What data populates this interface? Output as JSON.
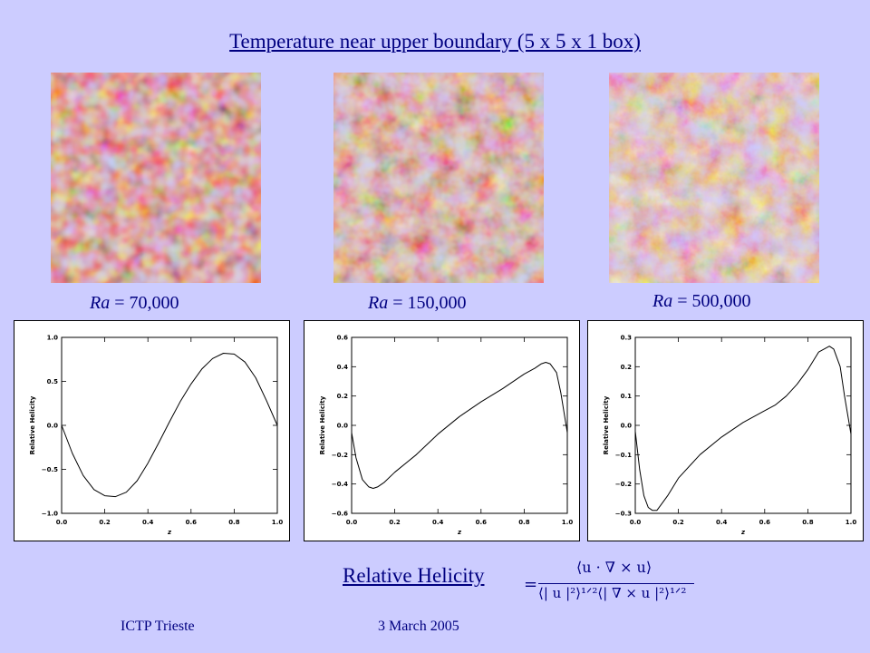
{
  "title": "Temperature near upper boundary (5 x 5 x 1 box)",
  "panels": [
    {
      "ra_symbol": "Ra",
      "ra_value": " = 70,000"
    },
    {
      "ra_symbol": "Ra",
      "ra_value": " = 150,000"
    },
    {
      "ra_symbol": "Ra",
      "ra_value": " = 500,000"
    }
  ],
  "chart_data": [
    {
      "type": "line",
      "xlabel": "z",
      "ylabel": "Relative Helicity",
      "xlim": [
        0.0,
        1.0
      ],
      "ylim": [
        -1.0,
        1.0
      ],
      "xticks": [
        "0.0",
        "0.2",
        "0.4",
        "0.6",
        "0.8",
        "1.0"
      ],
      "yticks": [
        -1.0,
        -0.5,
        0.0,
        0.5,
        1.0
      ],
      "ytick_labels": [
        "−1.0",
        "−0.5",
        "0.0",
        "0.5",
        "1.0"
      ],
      "series": [
        {
          "x": [
            0.0,
            0.05,
            0.1,
            0.15,
            0.2,
            0.25,
            0.3,
            0.35,
            0.4,
            0.45,
            0.5,
            0.55,
            0.6,
            0.65,
            0.7,
            0.75,
            0.8,
            0.85,
            0.9,
            0.95,
            1.0
          ],
          "values": [
            0.0,
            -0.32,
            -0.57,
            -0.73,
            -0.8,
            -0.81,
            -0.76,
            -0.63,
            -0.43,
            -0.2,
            0.04,
            0.27,
            0.47,
            0.64,
            0.76,
            0.82,
            0.81,
            0.72,
            0.54,
            0.28,
            0.0
          ]
        }
      ]
    },
    {
      "type": "line",
      "xlabel": "z",
      "ylabel": "Relative Helicity",
      "xlim": [
        0.0,
        1.0
      ],
      "ylim": [
        -0.6,
        0.6
      ],
      "xticks": [
        "0.0",
        "0.2",
        "0.4",
        "0.6",
        "0.8",
        "1.0"
      ],
      "yticks": [
        -0.6,
        -0.4,
        -0.2,
        0.0,
        0.2,
        0.4,
        0.6
      ],
      "ytick_labels": [
        "−0.6",
        "−0.4",
        "−0.2",
        "0.0",
        "0.2",
        "0.4",
        "0.6"
      ],
      "series": [
        {
          "x": [
            0.0,
            0.02,
            0.05,
            0.08,
            0.1,
            0.12,
            0.15,
            0.2,
            0.3,
            0.4,
            0.5,
            0.6,
            0.7,
            0.8,
            0.85,
            0.88,
            0.9,
            0.92,
            0.95,
            0.97,
            1.0
          ],
          "values": [
            -0.05,
            -0.22,
            -0.37,
            -0.42,
            -0.43,
            -0.42,
            -0.39,
            -0.32,
            -0.2,
            -0.06,
            0.06,
            0.16,
            0.25,
            0.35,
            0.39,
            0.42,
            0.43,
            0.42,
            0.36,
            0.22,
            -0.05
          ]
        }
      ]
    },
    {
      "type": "line",
      "xlabel": "z",
      "ylabel": "Relative Helicity",
      "xlim": [
        0.0,
        1.0
      ],
      "ylim": [
        -0.3,
        0.3
      ],
      "xticks": [
        "0.0",
        "0.2",
        "0.4",
        "0.6",
        "0.8",
        "1.0"
      ],
      "yticks": [
        -0.3,
        -0.2,
        -0.1,
        0.0,
        0.1,
        0.2,
        0.3
      ],
      "ytick_labels": [
        "−0.3",
        "−0.2",
        "−0.1",
        "0.0",
        "0.1",
        "0.2",
        "0.3"
      ],
      "series": [
        {
          "x": [
            0.0,
            0.02,
            0.04,
            0.06,
            0.08,
            0.1,
            0.12,
            0.15,
            0.2,
            0.3,
            0.4,
            0.5,
            0.6,
            0.65,
            0.7,
            0.75,
            0.8,
            0.85,
            0.9,
            0.92,
            0.95,
            0.97,
            1.0
          ],
          "values": [
            -0.02,
            -0.15,
            -0.24,
            -0.28,
            -0.29,
            -0.29,
            -0.27,
            -0.24,
            -0.18,
            -0.1,
            -0.04,
            0.01,
            0.05,
            0.07,
            0.1,
            0.14,
            0.19,
            0.25,
            0.27,
            0.26,
            0.2,
            0.1,
            -0.03
          ]
        }
      ]
    }
  ],
  "helicity": {
    "label": "Relative Helicity",
    "eq": "=",
    "numerator": "⟨u · ∇ × u⟩",
    "denominator": "⟨| u |²⟩¹ᐟ²⟨| ∇ × u |²⟩¹ᐟ²"
  },
  "footer": {
    "left": "ICTP Trieste",
    "right": "3 March 2005"
  }
}
